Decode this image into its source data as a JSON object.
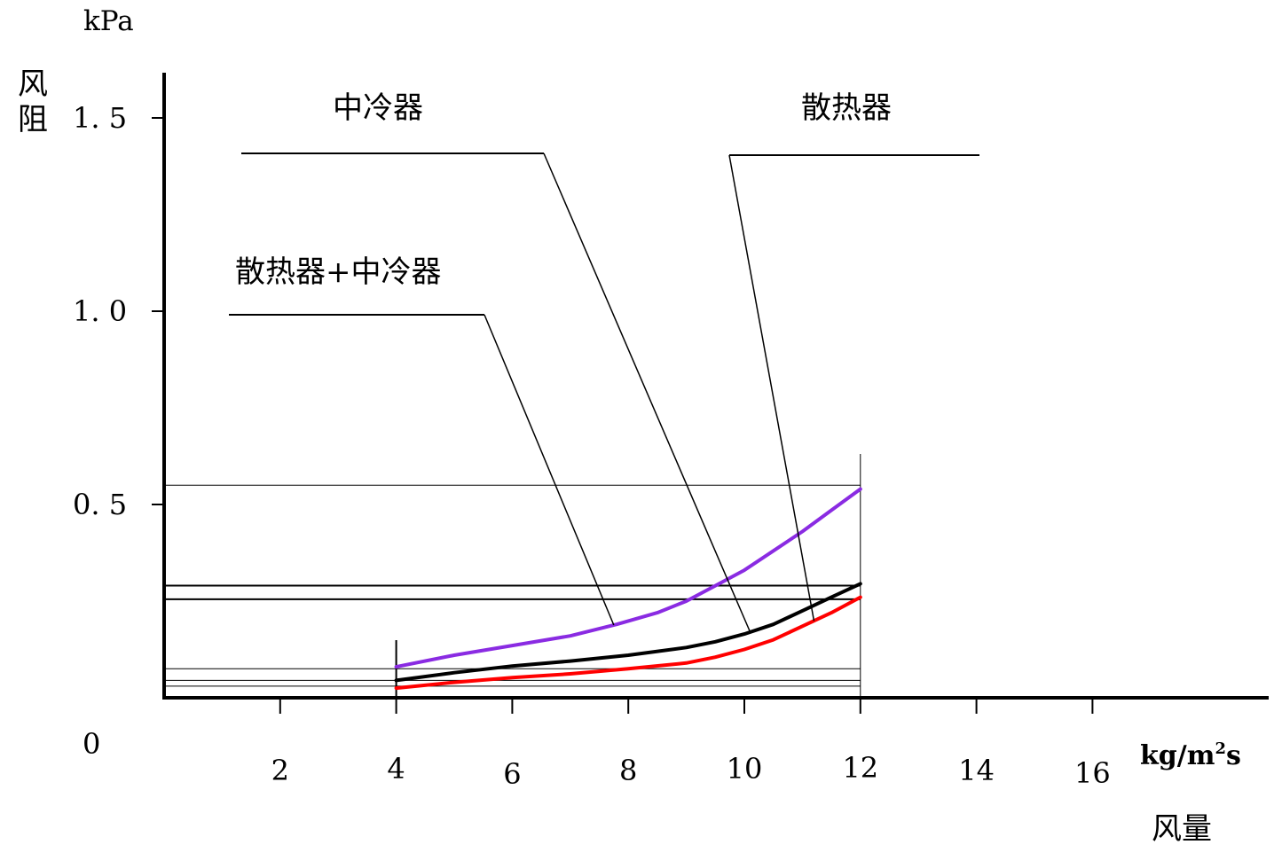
{
  "chart_data": {
    "type": "line",
    "y_unit": "kPa",
    "y_label_chars": [
      "风",
      "阻"
    ],
    "x_unit_base": "kg/m",
    "x_unit_sup": "2",
    "x_unit_tail": "s",
    "x_label": "风量",
    "origin_label": "0",
    "xlim": [
      0,
      18
    ],
    "ylim": [
      0,
      1.6
    ],
    "x_ticks": [
      2,
      4,
      6,
      8,
      10,
      12,
      14,
      16
    ],
    "y_ticks": [
      {
        "value": 0.5,
        "label": "0. 5"
      },
      {
        "value": 1.0,
        "label": "1. 0"
      },
      {
        "value": 1.5,
        "label": "1. 5"
      }
    ],
    "annotations": [
      {
        "id": "intercooler",
        "text": "中冷器"
      },
      {
        "id": "radiator",
        "text": "散热器"
      },
      {
        "id": "combined",
        "text": "散热器+中冷器"
      }
    ],
    "series": [
      {
        "id": "combined",
        "color": "#8a2be2",
        "x": [
          4,
          5,
          6,
          7,
          7.8,
          8.5,
          9,
          9.5,
          10,
          10.5,
          11,
          11.5,
          12
        ],
        "y": [
          0.08,
          0.11,
          0.135,
          0.16,
          0.19,
          0.22,
          0.25,
          0.29,
          0.33,
          0.38,
          0.43,
          0.485,
          0.54
        ]
      },
      {
        "id": "radiator",
        "color": "#000000",
        "x": [
          4,
          5,
          6,
          7,
          8,
          9,
          9.5,
          10,
          10.5,
          11,
          11.5,
          12
        ],
        "y": [
          0.045,
          0.065,
          0.082,
          0.095,
          0.11,
          0.13,
          0.145,
          0.165,
          0.19,
          0.225,
          0.26,
          0.295
        ]
      },
      {
        "id": "intercooler",
        "color": "#ff0000",
        "x": [
          4,
          5,
          6,
          7,
          8,
          9,
          9.5,
          10,
          10.5,
          11,
          11.5,
          12
        ],
        "y": [
          0.025,
          0.04,
          0.052,
          0.062,
          0.075,
          0.09,
          0.105,
          0.125,
          0.15,
          0.185,
          0.22,
          0.26
        ]
      }
    ],
    "reference_levels": [
      0.55,
      0.29,
      0.255,
      0.075,
      0.045,
      0.03
    ],
    "reference_x": [
      4,
      12
    ]
  }
}
